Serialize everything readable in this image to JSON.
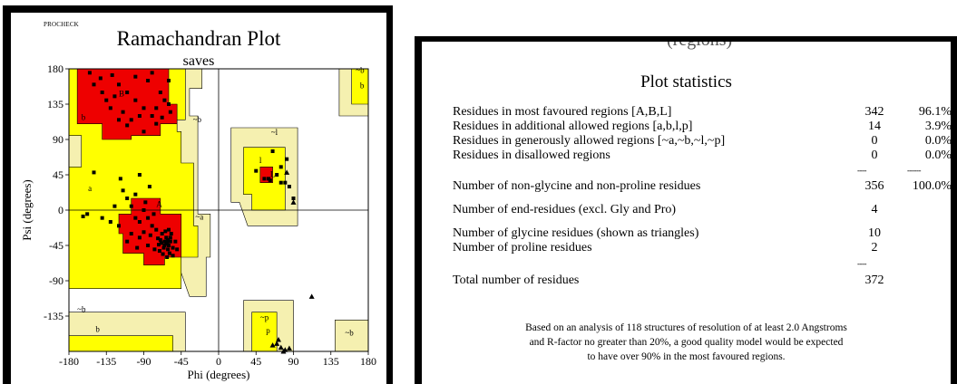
{
  "left_panel": {
    "program": "PROCHECK",
    "title": "Ramachandran Plot",
    "subtitle": "saves"
  },
  "chart_data": {
    "type": "scatter",
    "title": "Ramachandran Plot",
    "subtitle": "saves",
    "xlabel": "Phi (degrees)",
    "ylabel": "Psi (degrees)",
    "xlim": [
      -180,
      180
    ],
    "ylim": [
      -180,
      180
    ],
    "xticks": [
      "-180",
      "-135",
      "-90",
      "-45",
      "0",
      "45",
      "90",
      "135",
      "180"
    ],
    "yticks": [
      "180",
      "135",
      "90",
      "45",
      "0",
      "-45",
      "-90",
      "-135"
    ],
    "region_labels": [
      {
        "text": "B",
        "phi": -120,
        "psi": 145
      },
      {
        "text": "b",
        "phi": -165,
        "psi": 115
      },
      {
        "text": "~b",
        "phi": -31,
        "psi": 112
      },
      {
        "text": "~b",
        "phi": 165,
        "psi": 175
      },
      {
        "text": "b",
        "phi": 170,
        "psi": 155
      },
      {
        "text": "a",
        "phi": -157,
        "psi": 24
      },
      {
        "text": "A",
        "phi": -75,
        "psi": 4
      },
      {
        "text": "~a",
        "phi": -28,
        "psi": -12
      },
      {
        "text": "~l",
        "phi": 63,
        "psi": 96
      },
      {
        "text": "l",
        "phi": 49,
        "psi": 60
      },
      {
        "text": "L",
        "phi": 62,
        "psi": 42
      },
      {
        "text": "~b",
        "phi": -170,
        "psi": -130
      },
      {
        "text": "b",
        "phi": -148,
        "psi": -155
      },
      {
        "text": "~p",
        "phi": 50,
        "psi": -140
      },
      {
        "text": "p",
        "phi": 57,
        "psi": -157
      },
      {
        "text": "~b",
        "phi": 152,
        "psi": -160
      }
    ],
    "points": [
      [
        -142,
        168
      ],
      [
        -128,
        172
      ],
      [
        -120,
        160
      ],
      [
        -110,
        150
      ],
      [
        -100,
        140
      ],
      [
        -90,
        130
      ],
      [
        -80,
        120
      ],
      [
        -140,
        150
      ],
      [
        -150,
        160
      ],
      [
        -85,
        165
      ],
      [
        -70,
        150
      ],
      [
        -65,
        140
      ],
      [
        -60,
        135
      ],
      [
        -75,
        130
      ],
      [
        -95,
        120
      ],
      [
        -105,
        115
      ],
      [
        -115,
        125
      ],
      [
        -125,
        145
      ],
      [
        -135,
        140
      ],
      [
        -155,
        175
      ],
      [
        -100,
        170
      ],
      [
        -80,
        175
      ],
      [
        -60,
        165
      ],
      [
        -58,
        125
      ],
      [
        -68,
        118
      ],
      [
        -110,
        108
      ],
      [
        -120,
        115
      ],
      [
        -130,
        130
      ],
      [
        -90,
        100
      ],
      [
        -75,
        110
      ],
      [
        -65,
        -40
      ],
      [
        -62,
        -42
      ],
      [
        -60,
        -45
      ],
      [
        -58,
        -40
      ],
      [
        -63,
        -35
      ],
      [
        -70,
        -38
      ],
      [
        -66,
        -48
      ],
      [
        -55,
        -48
      ],
      [
        -57,
        -30
      ],
      [
        -68,
        -30
      ],
      [
        -72,
        -44
      ],
      [
        -61,
        -50
      ],
      [
        -59,
        -55
      ],
      [
        -64,
        -27
      ],
      [
        -75,
        -25
      ],
      [
        -80,
        -20
      ],
      [
        -85,
        -10
      ],
      [
        -90,
        0
      ],
      [
        -95,
        -15
      ],
      [
        -100,
        -10
      ],
      [
        -105,
        5
      ],
      [
        -110,
        15
      ],
      [
        -115,
        25
      ],
      [
        -100,
        20
      ],
      [
        -88,
        10
      ],
      [
        -78,
        -5
      ],
      [
        -120,
        -20
      ],
      [
        -130,
        -15
      ],
      [
        -140,
        -10
      ],
      [
        -125,
        5
      ],
      [
        -60,
        -25
      ],
      [
        -52,
        -40
      ],
      [
        -50,
        -50
      ],
      [
        -67,
        -56
      ],
      [
        -71,
        -52
      ],
      [
        -62,
        -60
      ],
      [
        -55,
        -58
      ],
      [
        -58,
        -35
      ],
      [
        -65,
        -45
      ],
      [
        -63,
        -43
      ],
      [
        -61,
        -38
      ],
      [
        -69,
        -42
      ],
      [
        -73,
        -36
      ],
      [
        -82,
        -32
      ],
      [
        -90,
        -28
      ],
      [
        -95,
        -35
      ],
      [
        -85,
        -45
      ],
      [
        -77,
        -50
      ],
      [
        -98,
        -48
      ],
      [
        -105,
        -30
      ],
      [
        -110,
        -40
      ],
      [
        -83,
        30
      ],
      [
        -95,
        45
      ],
      [
        -118,
        40
      ],
      [
        -150,
        48
      ],
      [
        -158,
        -5
      ],
      [
        -163,
        -8
      ],
      [
        45,
        50
      ],
      [
        55,
        40
      ],
      [
        60,
        40
      ],
      [
        62,
        38
      ],
      [
        70,
        45
      ],
      [
        75,
        35
      ],
      [
        80,
        35
      ],
      [
        85,
        30
      ],
      [
        75,
        55
      ],
      [
        65,
        75
      ],
      [
        90,
        15
      ],
      [
        82,
        65
      ]
    ],
    "triangles": [
      [
        90,
        10
      ],
      [
        82,
        48
      ],
      [
        112,
        -110
      ],
      [
        70,
        -170
      ],
      [
        75,
        -175
      ],
      [
        80,
        -178
      ],
      [
        72,
        -165
      ],
      [
        65,
        -172
      ],
      [
        78,
        -180
      ],
      [
        85,
        -176
      ]
    ]
  },
  "stats": {
    "cut_heading": "(regions)",
    "title": "Plot statistics",
    "rows": [
      {
        "label": "Residues in most favoured regions  [A,B,L]",
        "count": "342",
        "pct": "96.1%"
      },
      {
        "label": "Residues in additional allowed regions  [a,b,l,p]",
        "count": "14",
        "pct": "3.9%"
      },
      {
        "label": "Residues in generously allowed regions  [~a,~b,~l,~p]",
        "count": "0",
        "pct": "0.0%"
      },
      {
        "label": "Residues in disallowed regions",
        "count": "0",
        "pct": "0.0%"
      },
      {
        "label": "Number of non-glycine and non-proline residues",
        "count": "356",
        "pct": "100.0%"
      },
      {
        "label": "Number of end-residues (excl. Gly and Pro)",
        "count": "4",
        "pct": ""
      },
      {
        "label": "Number of glycine residues (shown as triangles)",
        "count": "10",
        "pct": ""
      },
      {
        "label": "Number of proline residues",
        "count": "2",
        "pct": ""
      },
      {
        "label": "Total number of residues",
        "count": "372",
        "pct": ""
      }
    ],
    "dash_count": "----",
    "dash_pct": "------",
    "note_line1": "Based on an analysis of 118 structures of resolution of at least 2.0 Angstroms",
    "note_line2": "and R-factor no greater than 20%, a good quality model would be expected",
    "note_line3": "to have over 90% in the most favoured regions.",
    "colors": {
      "core": "#ee0000",
      "allowed": "#ffff00",
      "generous": "#f5f0b0",
      "disallowed": "#ffffff"
    }
  }
}
